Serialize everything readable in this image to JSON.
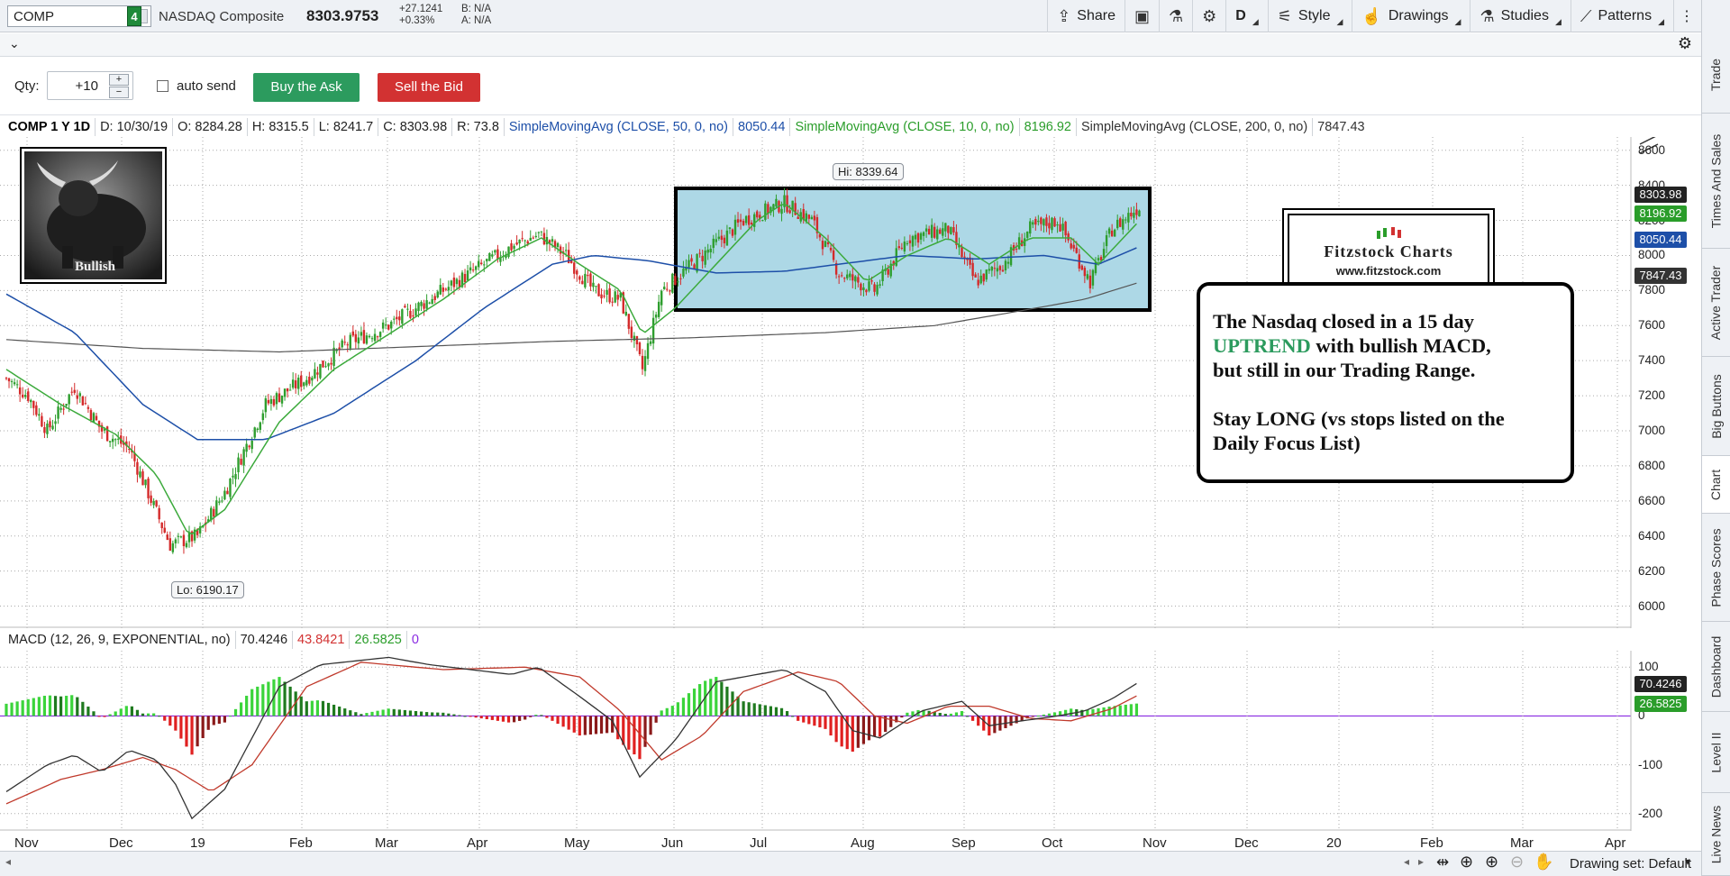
{
  "toolbar": {
    "symbol": "COMP",
    "link_number": "4",
    "description": "NASDAQ Composite",
    "last_price": "8303.9753",
    "net_change": "+27.1241",
    "pct_change": "+0.33%",
    "bid": "B: N/A",
    "ask": "A: N/A",
    "share_label": "Share",
    "aggregation": "D",
    "style_label": "Style",
    "drawings_label": "Drawings",
    "studies_label": "Studies",
    "patterns_label": "Patterns"
  },
  "right_tabs": [
    "Trade",
    "Times And Sales",
    "Active Trader",
    "Big Buttons",
    "Chart",
    "Phase Scores",
    "Dashboard",
    "Level II",
    "Live News"
  ],
  "order": {
    "qty_label": "Qty:",
    "qty_value": "+10",
    "auto_send_label": "auto send",
    "buy_label": "Buy the Ask",
    "sell_label": "Sell the Bid"
  },
  "study_bar": {
    "title": "COMP 1 Y 1D",
    "date": "D: 10/30/19",
    "open": "O: 8284.28",
    "high": "H: 8315.5",
    "low": "L: 8241.7",
    "close": "C: 8303.98",
    "range": "R: 73.8",
    "sma50_label": "SimpleMovingAvg (CLOSE, 50, 0, no)",
    "sma50_value": "8050.44",
    "sma10_label": "SimpleMovingAvg (CLOSE, 10, 0, no)",
    "sma10_value": "8196.92",
    "sma200_label": "SimpleMovingAvg (CLOSE, 200, 0, no)",
    "sma200_value": "7847.43"
  },
  "macd_bar": {
    "label": "MACD (12, 26, 9, EXPONENTIAL, no)",
    "value": "70.4246",
    "avg": "43.8421",
    "diff": "26.5825",
    "zero": "0"
  },
  "bull_image": {
    "caption": "Bullish"
  },
  "logo": {
    "title": "Fitzstock Charts",
    "url": "www.fitzstock.com"
  },
  "commentary": {
    "line1": "The Nasdaq closed in a 15 day",
    "highlight": "UPTREND",
    "line2_rest": " with bullish MACD,",
    "line3": "but still in our Trading Range.",
    "line4": "Stay LONG (vs stops listed on the",
    "line5": "Daily Focus List)"
  },
  "chart_data": [
    {
      "type": "candlestick",
      "symbol": "COMP",
      "aggregation": "1 Y 1D",
      "y_ticks": [
        6000,
        6200,
        6400,
        6600,
        6800,
        7000,
        7200,
        7400,
        7600,
        7800,
        8000,
        8200,
        8400,
        8600
      ],
      "ylim": [
        5900,
        8650
      ],
      "x_labels": [
        "Nov",
        "Dec",
        "19",
        "Feb",
        "Mar",
        "Apr",
        "May",
        "Jun",
        "Jul",
        "Aug",
        "Sep",
        "Oct",
        "Nov",
        "Dec",
        "20",
        "Feb",
        "Mar",
        "Apr"
      ],
      "close_path": [
        [
          0,
          7300
        ],
        [
          8,
          7200
        ],
        [
          15,
          7000
        ],
        [
          25,
          7250
        ],
        [
          35,
          7000
        ],
        [
          45,
          6900
        ],
        [
          60,
          6350
        ],
        [
          70,
          6400
        ],
        [
          80,
          6650
        ],
        [
          95,
          7150
        ],
        [
          110,
          7300
        ],
        [
          125,
          7500
        ],
        [
          140,
          7600
        ],
        [
          155,
          7750
        ],
        [
          170,
          7900
        ],
        [
          185,
          8050
        ],
        [
          195,
          8120
        ],
        [
          205,
          8000
        ],
        [
          215,
          7800
        ],
        [
          225,
          7750
        ],
        [
          233,
          7350
        ],
        [
          240,
          7800
        ],
        [
          255,
          8000
        ],
        [
          270,
          8200
        ],
        [
          285,
          8300
        ],
        [
          295,
          8200
        ],
        [
          305,
          7900
        ],
        [
          318,
          7800
        ],
        [
          330,
          8100
        ],
        [
          345,
          8150
        ],
        [
          355,
          7850
        ],
        [
          365,
          7950
        ],
        [
          375,
          8150
        ],
        [
          385,
          8200
        ],
        [
          392,
          8000
        ],
        [
          397,
          7850
        ],
        [
          405,
          8150
        ],
        [
          415,
          8280
        ]
      ],
      "sma_10_path": [
        [
          0,
          7350
        ],
        [
          20,
          7150
        ],
        [
          40,
          6980
        ],
        [
          55,
          6750
        ],
        [
          67,
          6400
        ],
        [
          80,
          6550
        ],
        [
          100,
          7050
        ],
        [
          120,
          7350
        ],
        [
          140,
          7550
        ],
        [
          160,
          7750
        ],
        [
          180,
          7980
        ],
        [
          196,
          8100
        ],
        [
          210,
          7950
        ],
        [
          225,
          7800
        ],
        [
          233,
          7550
        ],
        [
          245,
          7700
        ],
        [
          260,
          7950
        ],
        [
          275,
          8200
        ],
        [
          285,
          8300
        ],
        [
          300,
          8100
        ],
        [
          315,
          7850
        ],
        [
          330,
          8000
        ],
        [
          345,
          8100
        ],
        [
          360,
          7950
        ],
        [
          375,
          8100
        ],
        [
          390,
          8100
        ],
        [
          400,
          7950
        ],
        [
          415,
          8197
        ]
      ],
      "sma_50_path": [
        [
          0,
          7780
        ],
        [
          25,
          7560
        ],
        [
          50,
          7150
        ],
        [
          70,
          6950
        ],
        [
          95,
          6950
        ],
        [
          120,
          7100
        ],
        [
          150,
          7400
        ],
        [
          175,
          7700
        ],
        [
          200,
          7950
        ],
        [
          215,
          8000
        ],
        [
          235,
          7970
        ],
        [
          260,
          7900
        ],
        [
          285,
          7910
        ],
        [
          305,
          7950
        ],
        [
          330,
          8000
        ],
        [
          355,
          7980
        ],
        [
          380,
          8000
        ],
        [
          400,
          7950
        ],
        [
          415,
          8050
        ]
      ],
      "sma_200_path": [
        [
          0,
          7520
        ],
        [
          50,
          7470
        ],
        [
          100,
          7450
        ],
        [
          150,
          7480
        ],
        [
          200,
          7510
        ],
        [
          250,
          7530
        ],
        [
          300,
          7560
        ],
        [
          340,
          7600
        ],
        [
          370,
          7680
        ],
        [
          395,
          7750
        ],
        [
          415,
          7847
        ]
      ],
      "hi_callout": "Hi: 8339.64",
      "lo_callout": "Lo: 6190.17",
      "trading_range": [
        7650,
        8350
      ],
      "last_values": {
        "close": "8303.98",
        "sma10": "8196.92",
        "sma50": "8050.44",
        "sma200": "7847.43"
      }
    },
    {
      "type": "macd",
      "y_ticks": [
        100,
        0,
        -100,
        -200
      ],
      "ylim": [
        -230,
        130
      ],
      "macd_path": [
        [
          0,
          -155
        ],
        [
          15,
          -100
        ],
        [
          25,
          -80
        ],
        [
          35,
          -115
        ],
        [
          45,
          -70
        ],
        [
          55,
          -90
        ],
        [
          62,
          -140
        ],
        [
          68,
          -210
        ],
        [
          80,
          -150
        ],
        [
          100,
          60
        ],
        [
          115,
          105
        ],
        [
          140,
          120
        ],
        [
          155,
          105
        ],
        [
          170,
          95
        ],
        [
          185,
          85
        ],
        [
          195,
          100
        ],
        [
          210,
          40
        ],
        [
          222,
          -10
        ],
        [
          232,
          -125
        ],
        [
          245,
          -50
        ],
        [
          260,
          70
        ],
        [
          275,
          85
        ],
        [
          285,
          95
        ],
        [
          300,
          50
        ],
        [
          310,
          -30
        ],
        [
          320,
          -45
        ],
        [
          335,
          10
        ],
        [
          350,
          30
        ],
        [
          360,
          -20
        ],
        [
          372,
          -10
        ],
        [
          385,
          0
        ],
        [
          395,
          10
        ],
        [
          405,
          35
        ],
        [
          415,
          70
        ]
      ],
      "signal_path": [
        [
          0,
          -180
        ],
        [
          20,
          -130
        ],
        [
          35,
          -110
        ],
        [
          50,
          -85
        ],
        [
          62,
          -110
        ],
        [
          75,
          -155
        ],
        [
          90,
          -100
        ],
        [
          110,
          60
        ],
        [
          130,
          110
        ],
        [
          160,
          95
        ],
        [
          190,
          100
        ],
        [
          210,
          80
        ],
        [
          225,
          10
        ],
        [
          240,
          -90
        ],
        [
          255,
          -40
        ],
        [
          270,
          50
        ],
        [
          290,
          90
        ],
        [
          305,
          70
        ],
        [
          318,
          0
        ],
        [
          330,
          -15
        ],
        [
          345,
          20
        ],
        [
          360,
          20
        ],
        [
          375,
          -5
        ],
        [
          390,
          -10
        ],
        [
          405,
          15
        ],
        [
          415,
          44
        ]
      ],
      "last_values": {
        "value": "70.4246",
        "diff": "26.5825"
      }
    }
  ],
  "status": {
    "drawing_set": "Drawing set: Default"
  }
}
